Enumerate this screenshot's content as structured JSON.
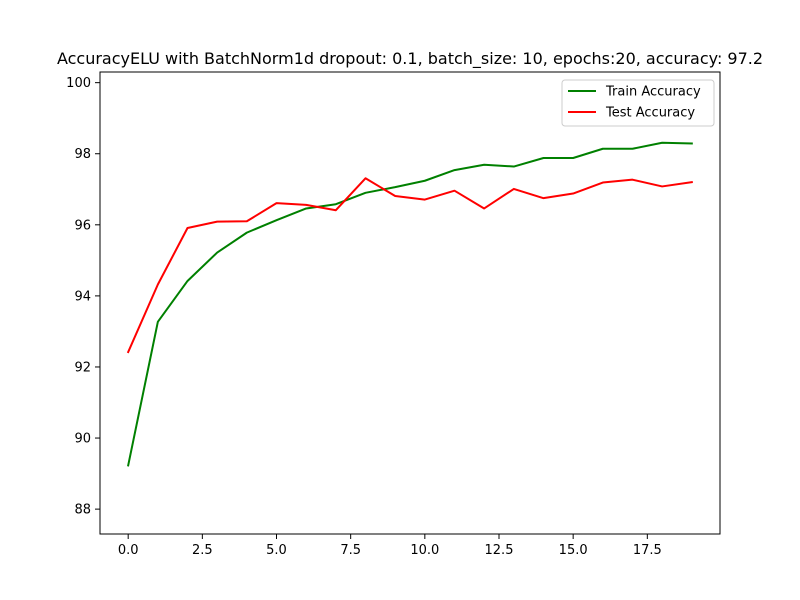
{
  "chart_data": {
    "type": "line",
    "title": "AccuracyELU with BatchNorm1d dropout: 0.1, batch_size: 10, epochs:20, accuracy: 97.2",
    "xlabel": "",
    "ylabel": "",
    "x": [
      0,
      1,
      2,
      3,
      4,
      5,
      6,
      7,
      8,
      9,
      10,
      11,
      12,
      13,
      14,
      15,
      16,
      17,
      18,
      19
    ],
    "xlim": [
      -0.95,
      19.95
    ],
    "ylim": [
      87.3,
      100.3
    ],
    "xticks": [
      0.0,
      2.5,
      5.0,
      7.5,
      10.0,
      12.5,
      15.0,
      17.5
    ],
    "xtick_labels": [
      "0.0",
      "2.5",
      "5.0",
      "7.5",
      "10.0",
      "12.5",
      "15.0",
      "17.5"
    ],
    "yticks": [
      88,
      90,
      92,
      94,
      96,
      98,
      100
    ],
    "ytick_labels": [
      "88",
      "90",
      "92",
      "94",
      "96",
      "98",
      "100"
    ],
    "grid": false,
    "legend_position": "top-right",
    "series": [
      {
        "name": "Train Accuracy",
        "color": "#008000",
        "values": [
          89.23,
          93.27,
          94.42,
          95.22,
          95.78,
          96.13,
          96.46,
          96.58,
          96.9,
          97.06,
          97.24,
          97.54,
          97.69,
          97.64,
          97.88,
          97.88,
          98.14,
          98.14,
          98.31,
          98.29
        ]
      },
      {
        "name": "Test Accuracy",
        "color": "#ff0000",
        "values": [
          92.42,
          94.32,
          95.91,
          96.09,
          96.1,
          96.61,
          96.56,
          96.41,
          97.31,
          96.81,
          96.71,
          96.96,
          96.46,
          97.01,
          96.75,
          96.88,
          97.19,
          97.27,
          97.08,
          97.2
        ]
      }
    ]
  }
}
